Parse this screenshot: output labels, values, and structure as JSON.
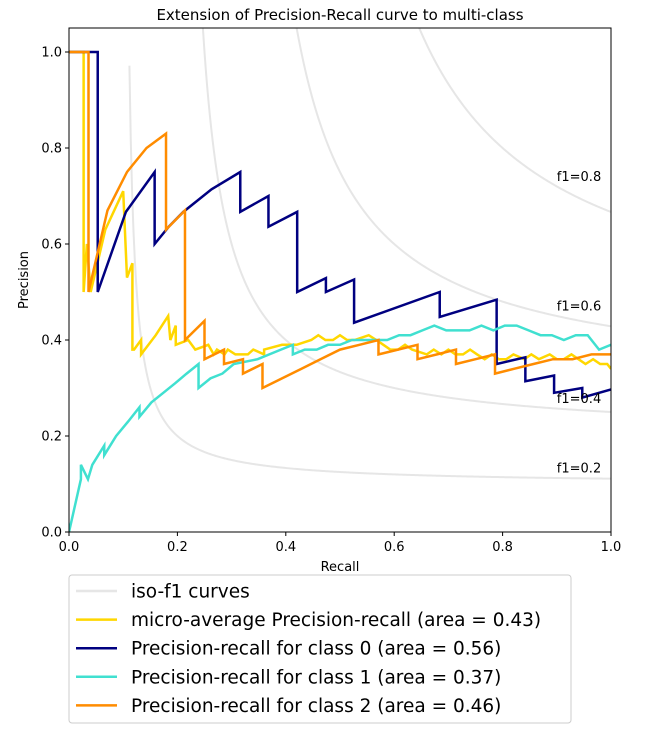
{
  "chart_data": {
    "type": "line",
    "title": "Extension of Precision-Recall curve to multi-class",
    "xlabel": "Recall",
    "ylabel": "Precision",
    "xlim": [
      0.0,
      1.0
    ],
    "ylim": [
      0.0,
      1.05
    ],
    "xticks": [
      "0.0",
      "0.2",
      "0.4",
      "0.6",
      "0.8",
      "1.0"
    ],
    "yticks": [
      "0.0",
      "0.2",
      "0.4",
      "0.6",
      "0.8",
      "1.0"
    ],
    "grid": false,
    "legend_position": "bottom, below plot",
    "iso_f1": {
      "values": [
        0.2,
        0.4,
        0.6,
        0.8
      ],
      "labels": [
        "f1=0.2",
        "f1=0.4",
        "f1=0.6",
        "f1=0.8"
      ],
      "color": "#e6e6e6"
    },
    "series": [
      {
        "name": "micro-average Precision-recall (area = 0.43)",
        "color": "#ffd700",
        "recall": [
          0.0,
          0.027,
          0.027,
          0.033,
          0.04,
          0.067,
          0.1,
          0.1,
          0.107,
          0.107,
          0.117,
          0.117,
          0.12,
          0.133,
          0.133,
          0.16,
          0.183,
          0.187,
          0.197,
          0.197,
          0.22,
          0.233,
          0.257,
          0.267,
          0.273,
          0.287,
          0.293,
          0.307,
          0.33,
          0.34,
          0.36,
          0.36,
          0.393,
          0.42,
          0.447,
          0.46,
          0.473,
          0.487,
          0.5,
          0.513,
          0.527,
          0.553,
          0.567,
          0.58,
          0.593,
          0.607,
          0.62,
          0.633,
          0.66,
          0.673,
          0.687,
          0.7,
          0.713,
          0.727,
          0.74,
          0.753,
          0.767,
          0.78,
          0.793,
          0.807,
          0.82,
          0.84,
          0.853,
          0.867,
          0.887,
          0.9,
          0.913,
          0.927,
          0.94,
          0.953,
          0.967,
          0.98,
          0.993,
          1.0
        ],
        "precision": [
          1.0,
          1.0,
          0.5,
          0.6,
          0.5,
          0.63,
          0.71,
          0.71,
          0.53,
          0.53,
          0.56,
          0.38,
          0.38,
          0.4,
          0.37,
          0.41,
          0.45,
          0.4,
          0.43,
          0.39,
          0.4,
          0.38,
          0.39,
          0.37,
          0.38,
          0.37,
          0.38,
          0.37,
          0.37,
          0.38,
          0.37,
          0.38,
          0.39,
          0.39,
          0.4,
          0.41,
          0.4,
          0.4,
          0.41,
          0.4,
          0.4,
          0.41,
          0.4,
          0.39,
          0.38,
          0.38,
          0.39,
          0.38,
          0.37,
          0.38,
          0.37,
          0.38,
          0.37,
          0.37,
          0.38,
          0.37,
          0.36,
          0.37,
          0.36,
          0.36,
          0.37,
          0.36,
          0.37,
          0.36,
          0.37,
          0.36,
          0.36,
          0.37,
          0.36,
          0.35,
          0.36,
          0.35,
          0.35,
          0.34
        ]
      },
      {
        "name": "Precision-recall for class 0 (area = 0.56)",
        "color": "#000080",
        "recall": [
          0.0,
          0.053,
          0.053,
          0.105,
          0.158,
          0.158,
          0.184,
          0.211,
          0.263,
          0.316,
          0.316,
          0.368,
          0.368,
          0.421,
          0.421,
          0.474,
          0.474,
          0.526,
          0.526,
          0.684,
          0.684,
          0.789,
          0.789,
          0.842,
          0.842,
          0.895,
          0.895,
          0.947,
          0.947,
          1.0
        ],
        "precision": [
          1.0,
          1.0,
          0.5,
          0.667,
          0.75,
          0.6,
          0.636,
          0.667,
          0.714,
          0.75,
          0.667,
          0.7,
          0.636,
          0.667,
          0.5,
          0.529,
          0.5,
          0.526,
          0.436,
          0.5,
          0.448,
          0.484,
          0.35,
          0.364,
          0.314,
          0.326,
          0.29,
          0.3,
          0.28,
          0.297
        ]
      },
      {
        "name": "Precision-recall for class 1 (area = 0.37)",
        "color": "#40e0d0",
        "recall": [
          0.0,
          0.022,
          0.022,
          0.035,
          0.043,
          0.065,
          0.065,
          0.087,
          0.109,
          0.13,
          0.13,
          0.152,
          0.174,
          0.196,
          0.217,
          0.239,
          0.239,
          0.261,
          0.283,
          0.304,
          0.348,
          0.391,
          0.413,
          0.413,
          0.435,
          0.457,
          0.478,
          0.5,
          0.522,
          0.543,
          0.565,
          0.587,
          0.609,
          0.63,
          0.652,
          0.674,
          0.696,
          0.717,
          0.739,
          0.761,
          0.783,
          0.804,
          0.826,
          0.848,
          0.87,
          0.891,
          0.913,
          0.935,
          0.957,
          0.978,
          1.0
        ],
        "precision": [
          0.0,
          0.11,
          0.14,
          0.11,
          0.14,
          0.18,
          0.16,
          0.2,
          0.23,
          0.26,
          0.24,
          0.27,
          0.29,
          0.31,
          0.33,
          0.35,
          0.3,
          0.32,
          0.33,
          0.35,
          0.36,
          0.38,
          0.39,
          0.37,
          0.38,
          0.38,
          0.39,
          0.39,
          0.4,
          0.4,
          0.4,
          0.4,
          0.41,
          0.41,
          0.42,
          0.43,
          0.42,
          0.42,
          0.42,
          0.43,
          0.42,
          0.43,
          0.43,
          0.42,
          0.41,
          0.41,
          0.4,
          0.41,
          0.41,
          0.38,
          0.39
        ]
      },
      {
        "name": "Precision-recall for class 2 (area = 0.46)",
        "color": "#ff8c00",
        "recall": [
          0.0,
          0.036,
          0.036,
          0.071,
          0.107,
          0.143,
          0.179,
          0.179,
          0.214,
          0.214,
          0.25,
          0.25,
          0.286,
          0.286,
          0.321,
          0.321,
          0.357,
          0.357,
          0.393,
          0.429,
          0.464,
          0.5,
          0.536,
          0.571,
          0.571,
          0.607,
          0.643,
          0.643,
          0.679,
          0.714,
          0.714,
          0.75,
          0.786,
          0.786,
          0.821,
          0.857,
          0.893,
          0.929,
          0.964,
          1.0
        ],
        "precision": [
          1.0,
          1.0,
          0.5,
          0.67,
          0.75,
          0.8,
          0.83,
          0.63,
          0.67,
          0.4,
          0.44,
          0.36,
          0.38,
          0.35,
          0.36,
          0.33,
          0.35,
          0.3,
          0.32,
          0.34,
          0.36,
          0.38,
          0.39,
          0.4,
          0.37,
          0.38,
          0.39,
          0.36,
          0.37,
          0.38,
          0.35,
          0.36,
          0.37,
          0.33,
          0.34,
          0.35,
          0.36,
          0.36,
          0.37,
          0.37
        ]
      }
    ],
    "legend": [
      {
        "label": "iso-f1 curves",
        "color": "#e6e6e6"
      },
      {
        "label": "micro-average Precision-recall (area = 0.43)",
        "color": "#ffd700"
      },
      {
        "label": "Precision-recall for class 0 (area = 0.56)",
        "color": "#000080"
      },
      {
        "label": "Precision-recall for class 1 (area = 0.37)",
        "color": "#40e0d0"
      },
      {
        "label": "Precision-recall for class 2 (area = 0.46)",
        "color": "#ff8c00"
      }
    ]
  }
}
